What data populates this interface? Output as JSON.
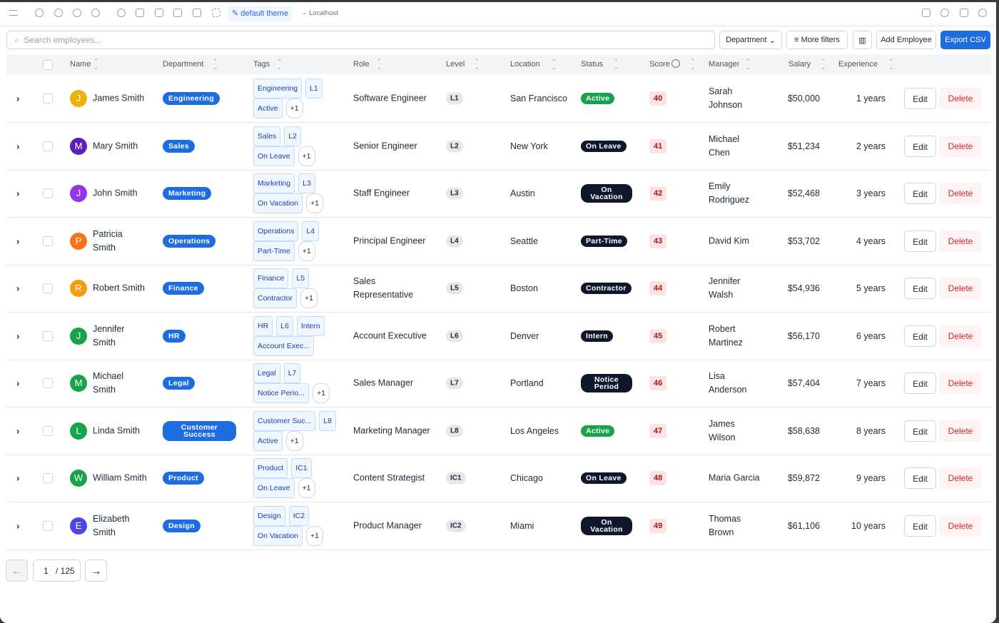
{
  "toolbar": {
    "theme": "default theme",
    "location": "Localhost"
  },
  "filters": {
    "search_placeholder": "Search employees...",
    "department": "Department",
    "more_filters": "More filters",
    "add": "Add Employee",
    "export": "Export CSV"
  },
  "table": {
    "columns": [
      "Name",
      "Department",
      "Tags",
      "Role",
      "Level",
      "Location",
      "Status",
      "Score",
      "Manager",
      "Salary",
      "Experience"
    ],
    "actions": {
      "edit": "Edit",
      "delete": "Delete"
    },
    "rows": [
      {
        "initial": "J",
        "avatar_color": "#eab308",
        "name": "James Smith",
        "department": "Engineering",
        "tag_lines": [
          [
            "Engineering",
            "L1"
          ],
          [
            "Active"
          ]
        ],
        "more": "+1",
        "role": "Software Engineer",
        "level": "L1",
        "location": "San Francisco",
        "status": "Active",
        "status_color": "#16a34a",
        "score": 40,
        "manager": "Sarah Johnson",
        "salary": "$50,000",
        "experience": "1 years"
      },
      {
        "initial": "M",
        "avatar_color": "#5b21b6",
        "name": "Mary Smith",
        "department": "Sales",
        "tag_lines": [
          [
            "Sales",
            "L2"
          ],
          [
            "On Leave"
          ]
        ],
        "more": "+1",
        "role": "Senior Engineer",
        "level": "L2",
        "location": "New York",
        "status": "On Leave",
        "status_color": "#0f172a",
        "score": 41,
        "manager": "Michael Chen",
        "salary": "$51,234",
        "experience": "2 years"
      },
      {
        "initial": "J",
        "avatar_color": "#9333ea",
        "name": "John Smith",
        "department": "Marketing",
        "tag_lines": [
          [
            "Marketing",
            "L3"
          ],
          [
            "On Vacation"
          ]
        ],
        "more": "+1",
        "role": "Staff Engineer",
        "level": "L3",
        "location": "Austin",
        "status": "On Vacation",
        "status_color": "#0f172a",
        "score": 42,
        "manager": "Emily Rodriguez",
        "salary": "$52,468",
        "experience": "3 years"
      },
      {
        "initial": "P",
        "avatar_color": "#f97316",
        "name": "Patricia Smith",
        "department": "Operations",
        "tag_lines": [
          [
            "Operations",
            "L4"
          ],
          [
            "Part-Time"
          ]
        ],
        "more": "+1",
        "role": "Principal Engineer",
        "level": "L4",
        "location": "Seattle",
        "status": "Part-Time",
        "status_color": "#0f172a",
        "score": 43,
        "manager": "David Kim",
        "salary": "$53,702",
        "experience": "4 years"
      },
      {
        "initial": "R",
        "avatar_color": "#f59e0b",
        "name": "Robert Smith",
        "department": "Finance",
        "tag_lines": [
          [
            "Finance",
            "L5"
          ],
          [
            "Contractor"
          ]
        ],
        "more": "+1",
        "role": "Sales Representative",
        "level": "L5",
        "location": "Boston",
        "status": "Contractor",
        "status_color": "#0f172a",
        "score": 44,
        "manager": "Jennifer Walsh",
        "salary": "$54,936",
        "experience": "5 years"
      },
      {
        "initial": "J",
        "avatar_color": "#16a34a",
        "name": "Jennifer Smith",
        "department": "HR",
        "tag_lines": [
          [
            "HR",
            "L6",
            "Intern"
          ],
          [
            "Account Exec..."
          ]
        ],
        "role": "Account Executive",
        "level": "L6",
        "location": "Denver",
        "status": "Intern",
        "status_color": "#0f172a",
        "score": 45,
        "manager": "Robert Martinez",
        "salary": "$56,170",
        "experience": "6 years"
      },
      {
        "initial": "M",
        "avatar_color": "#16a34a",
        "name": "Michael Smith",
        "department": "Legal",
        "tag_lines": [
          [
            "Legal",
            "L7"
          ],
          [
            "Notice Perio..."
          ]
        ],
        "more": "+1",
        "role": "Sales Manager",
        "level": "L7",
        "location": "Portland",
        "status": "Notice Period",
        "status_color": "#0f172a",
        "score": 46,
        "manager": "Lisa Anderson",
        "salary": "$57,404",
        "experience": "7 years"
      },
      {
        "initial": "L",
        "avatar_color": "#16a34a",
        "name": "Linda Smith",
        "department": "Customer Success",
        "tag_lines": [
          [
            "Customer Suc...",
            "L8"
          ],
          [
            "Active"
          ]
        ],
        "more": "+1",
        "role": "Marketing Manager",
        "level": "L8",
        "location": "Los Angeles",
        "status": "Active",
        "status_color": "#16a34a",
        "score": 47,
        "manager": "James Wilson",
        "salary": "$58,638",
        "experience": "8 years"
      },
      {
        "initial": "W",
        "avatar_color": "#16a34a",
        "name": "William Smith",
        "department": "Product",
        "tag_lines": [
          [
            "Product",
            "IC1"
          ],
          [
            "On Leave"
          ]
        ],
        "more": "+1",
        "role": "Content Strategist",
        "level": "IC1",
        "location": "Chicago",
        "status": "On Leave",
        "status_color": "#0f172a",
        "score": 48,
        "manager": "Maria Garcia",
        "salary": "$59,872",
        "experience": "9 years"
      },
      {
        "initial": "E",
        "avatar_color": "#4f46e5",
        "name": "Elizabeth Smith",
        "department": "Design",
        "tag_lines": [
          [
            "Design",
            "IC2"
          ],
          [
            "On Vacation"
          ]
        ],
        "more": "+1",
        "role": "Product Manager",
        "level": "IC2",
        "location": "Miami",
        "status": "On Vacation",
        "status_color": "#0f172a",
        "score": 49,
        "manager": "Thomas Brown",
        "salary": "$61,106",
        "experience": "10 years"
      }
    ]
  },
  "pagination": {
    "page": 1,
    "total": "/ 125"
  }
}
